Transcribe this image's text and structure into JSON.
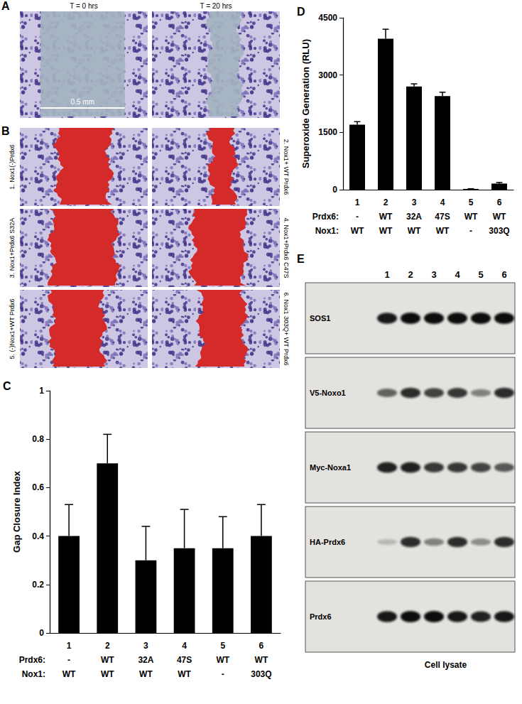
{
  "panels": {
    "A": {
      "label": "A",
      "time_labels": [
        "T = 0 hrs",
        "T = 20 hrs"
      ],
      "scale_bar": "0.5 mm"
    },
    "B": {
      "label": "B",
      "images": [
        "1. Nox1(-)Prdx6",
        "2. Nox1+ WT Prdx6",
        "3. Nox1+Prdx6 S32A",
        "4. Nox1+Prdx6 C47S",
        "5. (-)Nox1+WT Prdx6",
        "6. Nox1 303Q+ WT Prdx6"
      ]
    },
    "E": {
      "label": "E",
      "lanes": [
        "1",
        "2",
        "3",
        "4",
        "5",
        "6"
      ],
      "caption": "Cell lysate",
      "blots": [
        {
          "name": "SOS1",
          "intensity": [
            0.95,
            1,
            1,
            1,
            1,
            1
          ]
        },
        {
          "name": "V5-Noxo1",
          "intensity": [
            0.6,
            0.85,
            0.75,
            0.8,
            0.45,
            0.85
          ]
        },
        {
          "name": "Myc-Noxa1",
          "intensity": [
            0.9,
            0.9,
            0.8,
            0.8,
            0.75,
            0.65
          ]
        },
        {
          "name": "HA-Prdx6",
          "intensity": [
            0.2,
            0.85,
            0.45,
            0.85,
            0.4,
            0.85
          ]
        },
        {
          "name": "Prdx6",
          "intensity": [
            0.95,
            1,
            1,
            0.95,
            0.9,
            0.95
          ]
        }
      ]
    }
  },
  "chart_data": [
    {
      "type": "bar",
      "panel_label": "C",
      "y_label": "Gap Closure Index",
      "categories": [
        "1",
        "2",
        "3",
        "4",
        "5",
        "6"
      ],
      "values": [
        0.4,
        0.7,
        0.3,
        0.35,
        0.35,
        0.4
      ],
      "errors": [
        0.13,
        0.12,
        0.14,
        0.16,
        0.13,
        0.13
      ],
      "color": "#000000",
      "ylim": [
        0,
        1
      ],
      "yticks": [
        0,
        0.2,
        0.4,
        0.6,
        0.8,
        1
      ],
      "grid": false,
      "condition_rows": [
        {
          "label": "Prdx6:",
          "items": [
            "-",
            "WT",
            "32A",
            "47S",
            "WT",
            "WT"
          ]
        },
        {
          "label": "Nox1:",
          "items": [
            "WT",
            "WT",
            "WT",
            "WT",
            "-",
            "303Q"
          ]
        }
      ]
    },
    {
      "type": "bar",
      "panel_label": "D",
      "y_label": "Superoxide Generation (RLU)",
      "categories": [
        "1",
        "2",
        "3",
        "4",
        "5",
        "6"
      ],
      "values": [
        1700,
        3950,
        2700,
        2450,
        20,
        160
      ],
      "errors": [
        80,
        250,
        70,
        100,
        5,
        30
      ],
      "color": "#000000",
      "ylim": [
        0,
        4500
      ],
      "yticks": [
        0,
        1500,
        3000,
        4500
      ],
      "grid": false,
      "condition_rows": [
        {
          "label": "Prdx6:",
          "items": [
            "-",
            "WT",
            "32A",
            "47S",
            "WT",
            "WT"
          ]
        },
        {
          "label": "Nox1:",
          "items": [
            "WT",
            "WT",
            "WT",
            "WT",
            "-",
            "303Q"
          ]
        }
      ]
    }
  ]
}
